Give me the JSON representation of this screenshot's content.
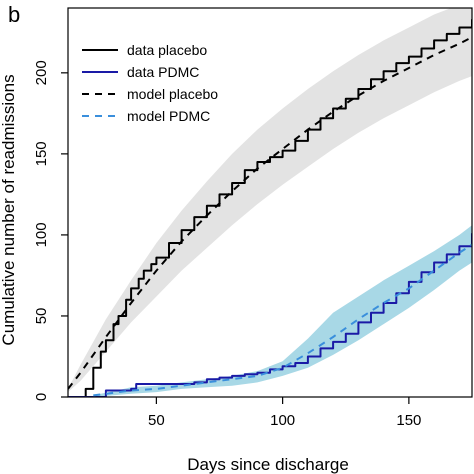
{
  "panel_label": "b",
  "chart_data": {
    "type": "line",
    "title": "",
    "xlabel": "Days since discharge",
    "ylabel": "Cumulative number of readmissions",
    "xlim": [
      15,
      175
    ],
    "ylim": [
      0,
      240
    ],
    "x_ticks": [
      50,
      100,
      150
    ],
    "y_ticks": [
      0,
      50,
      100,
      150,
      200
    ],
    "grid": false,
    "legend_position": "top-left",
    "bands": [
      {
        "name": "placebo uncertainty band",
        "color": "#e3e3e3",
        "x": [
          15,
          20,
          30,
          40,
          50,
          60,
          70,
          80,
          90,
          100,
          110,
          120,
          130,
          140,
          150,
          160,
          170,
          175
        ],
        "lower": [
          3,
          10,
          28,
          46,
          62,
          78,
          92,
          106,
          119,
          131,
          142,
          153,
          163,
          172,
          180,
          188,
          195,
          198
        ],
        "upper": [
          5,
          20,
          48,
          72,
          95,
          115,
          133,
          150,
          165,
          178,
          190,
          201,
          211,
          220,
          228,
          236,
          242,
          243
        ]
      },
      {
        "name": "PDMC uncertainty band",
        "color": "#a8d8e6",
        "x": [
          25,
          40,
          50,
          60,
          70,
          80,
          90,
          100,
          110,
          120,
          130,
          140,
          150,
          160,
          170,
          175
        ],
        "lower": [
          0,
          2,
          3,
          5,
          6,
          7,
          9,
          13,
          18,
          26,
          35,
          45,
          55,
          66,
          78,
          83
        ],
        "upper": [
          1,
          6,
          7,
          9,
          11,
          13,
          16,
          22,
          36,
          52,
          62,
          72,
          81,
          90,
          100,
          106
        ]
      }
    ],
    "series": [
      {
        "name": "data placebo",
        "color": "#000000",
        "dash": "solid",
        "x": [
          15,
          20,
          22,
          25,
          28,
          30,
          33,
          35,
          38,
          40,
          43,
          45,
          48,
          50,
          55,
          60,
          65,
          70,
          75,
          80,
          85,
          90,
          95,
          100,
          105,
          110,
          115,
          120,
          125,
          130,
          135,
          140,
          145,
          150,
          155,
          160,
          165,
          170,
          175
        ],
        "y": [
          0,
          0,
          5,
          18,
          28,
          35,
          45,
          50,
          60,
          67,
          73,
          78,
          82,
          86,
          95,
          103,
          111,
          118,
          125,
          132,
          140,
          145,
          148,
          152,
          158,
          165,
          172,
          178,
          184,
          190,
          196,
          201,
          206,
          210,
          215,
          220,
          224,
          228,
          233
        ]
      },
      {
        "name": "data PDMC",
        "color": "#1a1aa6",
        "dash": "solid",
        "x": [
          15,
          25,
          30,
          35,
          40,
          42,
          50,
          60,
          65,
          70,
          75,
          80,
          85,
          90,
          95,
          100,
          105,
          110,
          115,
          120,
          125,
          130,
          135,
          140,
          145,
          150,
          155,
          160,
          165,
          170,
          175
        ],
        "y": [
          0,
          0,
          4,
          4,
          5,
          8,
          8,
          8,
          9,
          11,
          12,
          13,
          14,
          15,
          17,
          19,
          21,
          25,
          30,
          34,
          39,
          46,
          52,
          58,
          64,
          71,
          77,
          83,
          88,
          93,
          101
        ]
      },
      {
        "name": "model placebo",
        "color": "#000000",
        "dash": "dashed",
        "x": [
          15,
          20,
          30,
          40,
          50,
          60,
          70,
          80,
          90,
          100,
          110,
          120,
          130,
          140,
          150,
          160,
          170,
          175
        ],
        "y": [
          5,
          15,
          37,
          58,
          78,
          96,
          112,
          127,
          141,
          153,
          165,
          176,
          186,
          195,
          203,
          211,
          218,
          222
        ]
      },
      {
        "name": "model PDMC",
        "color": "#3a8fdc",
        "dash": "dashed",
        "x": [
          25,
          40,
          50,
          60,
          70,
          80,
          90,
          100,
          110,
          120,
          130,
          140,
          150,
          160,
          170,
          175
        ],
        "y": [
          1,
          4,
          5,
          7,
          9,
          11,
          13,
          18,
          27,
          37,
          48,
          58,
          67,
          78,
          89,
          94
        ]
      }
    ]
  }
}
